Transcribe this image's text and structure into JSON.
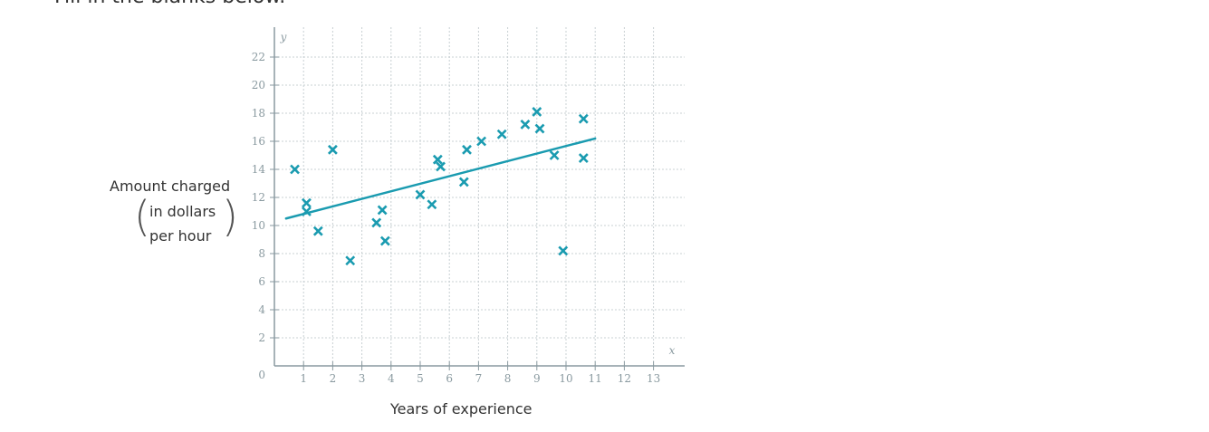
{
  "prompt_text": "Fill in the blanks below.",
  "chart_data": {
    "type": "scatter",
    "title": "",
    "xlabel": "Years of experience",
    "ylabel": {
      "main": "Amount charged",
      "line1": "in dollars",
      "line2": "per hour"
    },
    "x_axis_var": "x",
    "y_axis_var": "y",
    "origin_label": "0",
    "xlim": [
      0,
      14
    ],
    "ylim": [
      0,
      23
    ],
    "xticks": [
      1,
      2,
      3,
      4,
      5,
      6,
      7,
      8,
      9,
      10,
      11,
      12,
      13
    ],
    "yticks": [
      2,
      4,
      6,
      8,
      10,
      12,
      14,
      16,
      18,
      20,
      22
    ],
    "grid": true,
    "marker": "x",
    "colors": {
      "points": "#1a9bb0",
      "line": "#1a9bb0",
      "axis": "#8a9aa0",
      "grid": "#c8d0d3"
    },
    "points": [
      {
        "x": 0.7,
        "y": 14.0
      },
      {
        "x": 1.1,
        "y": 11.6
      },
      {
        "x": 1.1,
        "y": 11.0
      },
      {
        "x": 1.5,
        "y": 9.6
      },
      {
        "x": 2.0,
        "y": 15.4
      },
      {
        "x": 2.6,
        "y": 7.5
      },
      {
        "x": 3.5,
        "y": 10.2
      },
      {
        "x": 3.7,
        "y": 11.1
      },
      {
        "x": 3.8,
        "y": 8.9
      },
      {
        "x": 5.0,
        "y": 12.2
      },
      {
        "x": 5.4,
        "y": 11.5
      },
      {
        "x": 5.6,
        "y": 14.7
      },
      {
        "x": 5.7,
        "y": 14.2
      },
      {
        "x": 6.5,
        "y": 13.1
      },
      {
        "x": 6.6,
        "y": 15.4
      },
      {
        "x": 7.1,
        "y": 16.0
      },
      {
        "x": 7.8,
        "y": 16.5
      },
      {
        "x": 8.6,
        "y": 17.2
      },
      {
        "x": 9.0,
        "y": 18.1
      },
      {
        "x": 9.1,
        "y": 16.9
      },
      {
        "x": 9.6,
        "y": 15.0
      },
      {
        "x": 9.9,
        "y": 8.2
      },
      {
        "x": 10.6,
        "y": 17.6
      },
      {
        "x": 10.6,
        "y": 14.8
      }
    ],
    "trend_line": {
      "x1": 0.4,
      "y1": 10.5,
      "x2": 11.0,
      "y2": 16.2
    }
  }
}
